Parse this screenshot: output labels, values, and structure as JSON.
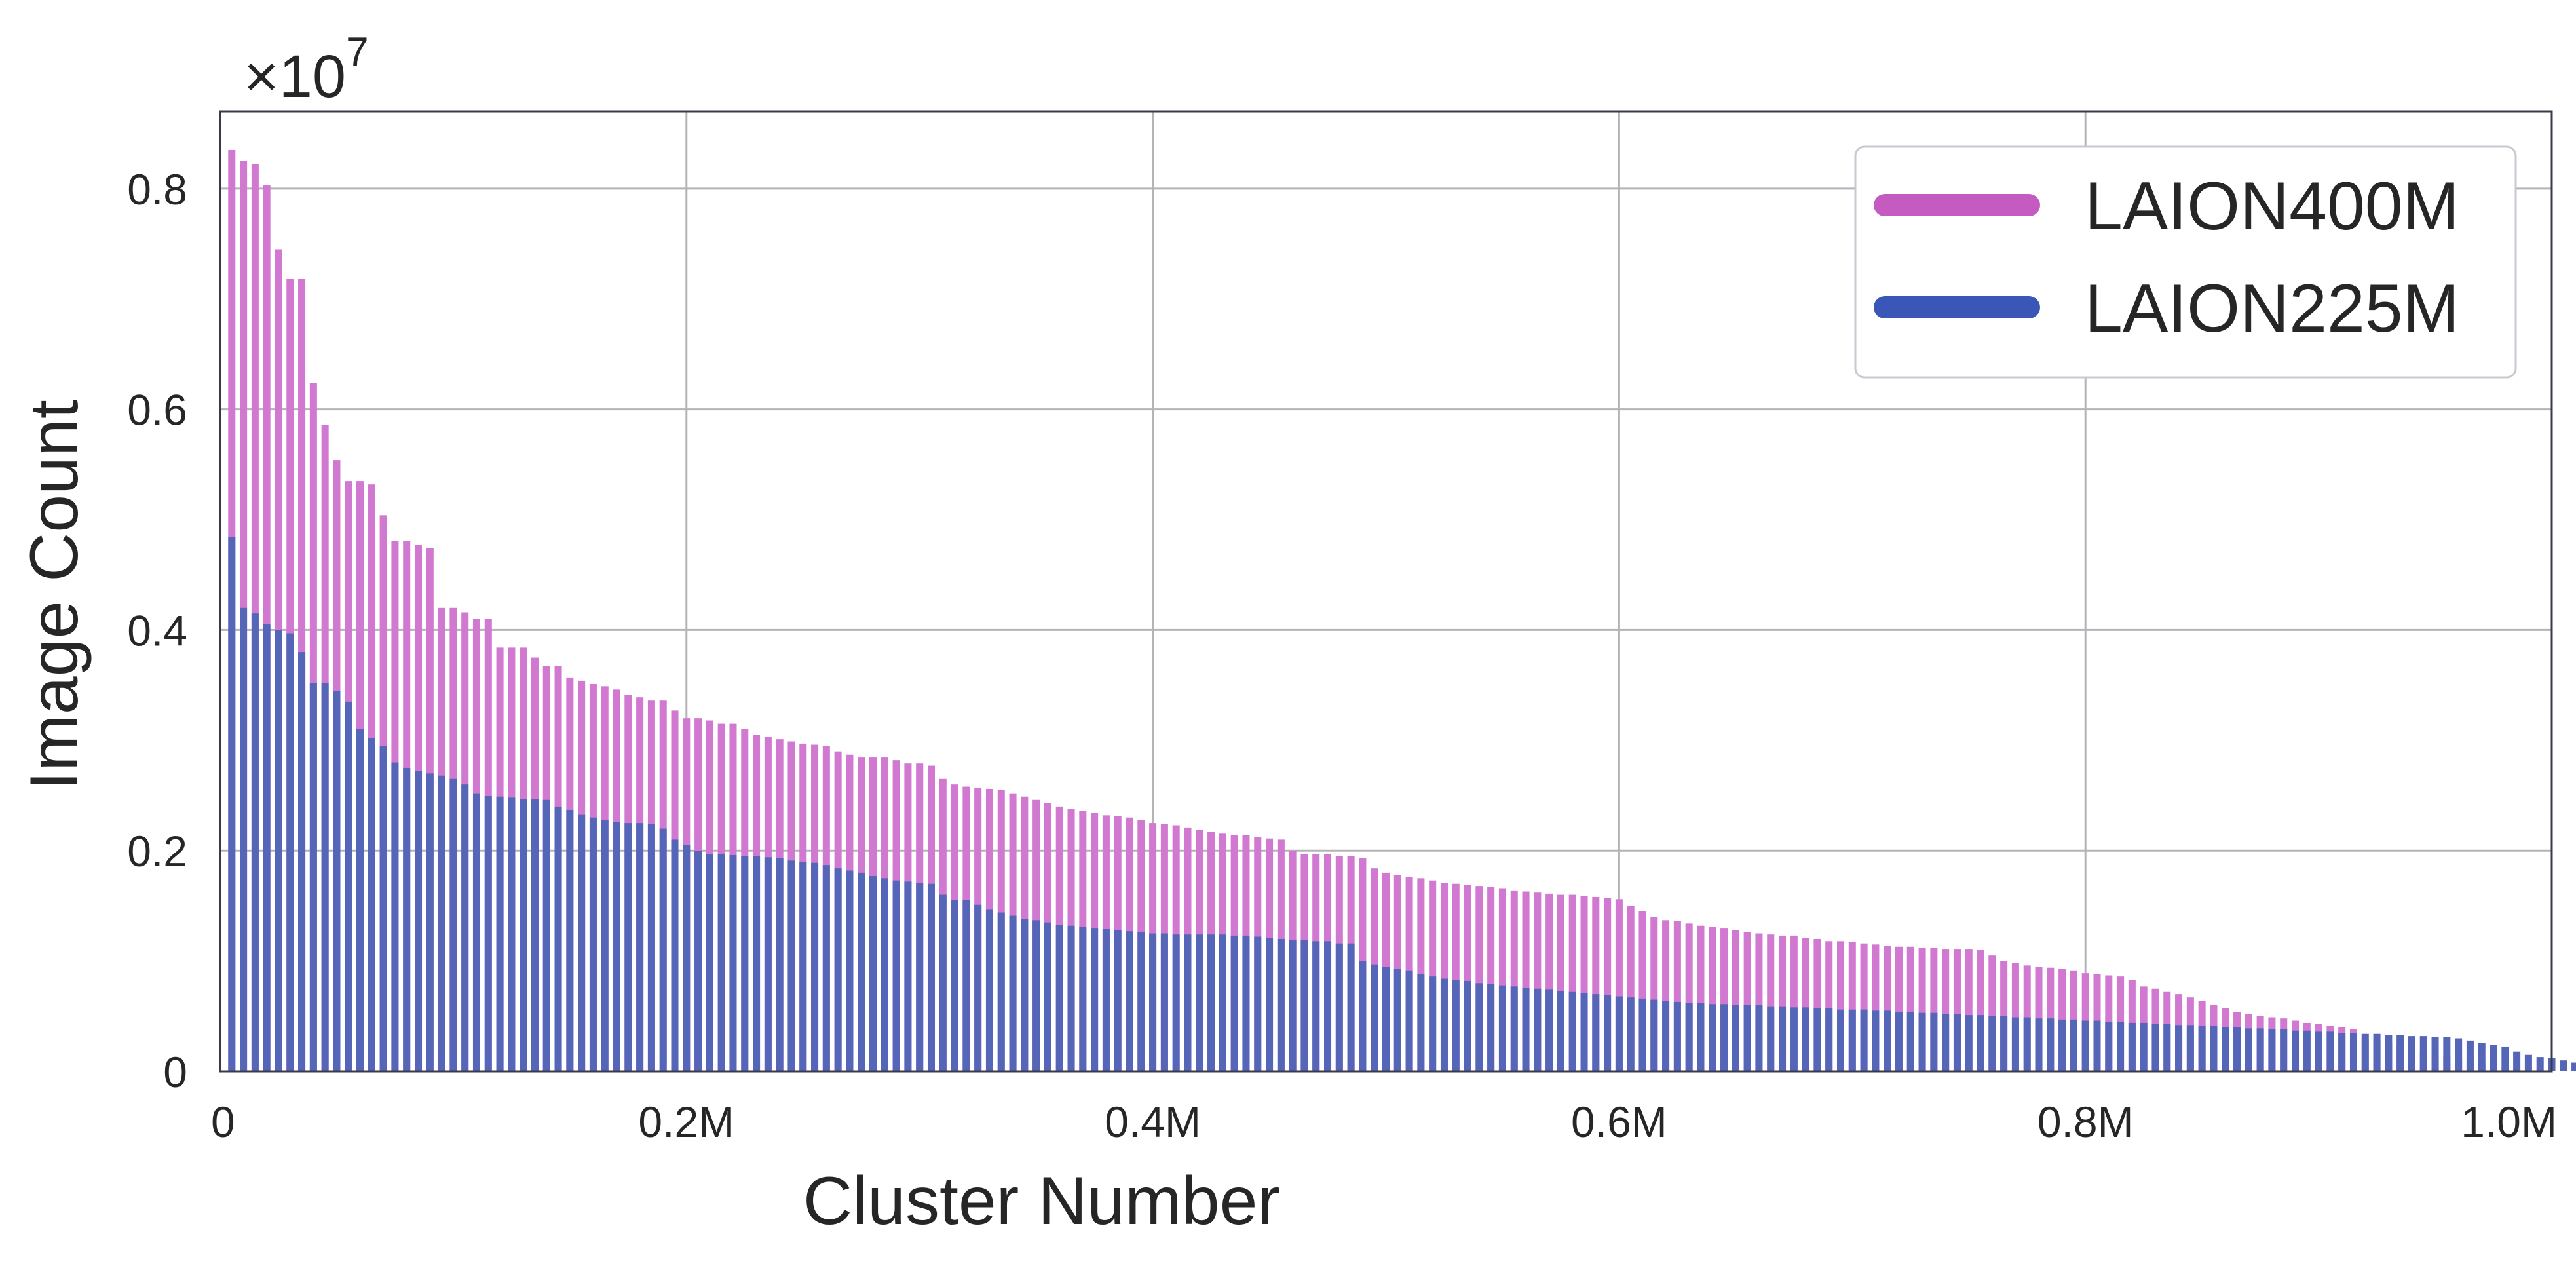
{
  "chart_data": {
    "type": "bar",
    "title": "",
    "xlabel": "Cluster Number",
    "ylabel": "Image Count",
    "y_scale_prefix": "×10",
    "y_scale_exponent": "7",
    "xlim": [
      0,
      1000000
    ],
    "ylim": [
      0,
      0.87
    ],
    "x_ticks": [
      {
        "value": 0,
        "label": "0"
      },
      {
        "value": 200000,
        "label": "0.2M"
      },
      {
        "value": 400000,
        "label": "0.4M"
      },
      {
        "value": 600000,
        "label": "0.6M"
      },
      {
        "value": 800000,
        "label": "0.8M"
      },
      {
        "value": 1000000,
        "label": "1.0M"
      }
    ],
    "y_ticks": [
      {
        "value": 0,
        "label": "0"
      },
      {
        "value": 0.2,
        "label": "0.2"
      },
      {
        "value": 0.4,
        "label": "0.4"
      },
      {
        "value": 0.6,
        "label": "0.6"
      },
      {
        "value": 0.8,
        "label": "0.8"
      }
    ],
    "grid": true,
    "legend_position": "top-right",
    "bin_width": 5000,
    "bin_start": 5000,
    "series": [
      {
        "name": "LAION400M",
        "color": "#d179d1",
        "legend_color": "#c55bc0",
        "values": [
          0.835,
          0.825,
          0.822,
          0.803,
          0.745,
          0.718,
          0.718,
          0.624,
          0.586,
          0.554,
          0.535,
          0.535,
          0.532,
          0.504,
          0.481,
          0.481,
          0.477,
          0.474,
          0.42,
          0.42,
          0.416,
          0.41,
          0.41,
          0.384,
          0.384,
          0.384,
          0.375,
          0.367,
          0.367,
          0.357,
          0.354,
          0.351,
          0.349,
          0.346,
          0.341,
          0.339,
          0.336,
          0.336,
          0.327,
          0.32,
          0.32,
          0.318,
          0.315,
          0.315,
          0.31,
          0.305,
          0.303,
          0.301,
          0.299,
          0.297,
          0.296,
          0.295,
          0.29,
          0.287,
          0.285,
          0.285,
          0.285,
          0.282,
          0.279,
          0.279,
          0.277,
          0.265,
          0.26,
          0.258,
          0.257,
          0.256,
          0.255,
          0.252,
          0.249,
          0.246,
          0.243,
          0.24,
          0.238,
          0.236,
          0.234,
          0.232,
          0.231,
          0.23,
          0.228,
          0.225,
          0.224,
          0.223,
          0.221,
          0.219,
          0.217,
          0.216,
          0.214,
          0.214,
          0.212,
          0.211,
          0.21,
          0.2,
          0.197,
          0.197,
          0.197,
          0.195,
          0.195,
          0.193,
          0.184,
          0.18,
          0.178,
          0.176,
          0.175,
          0.173,
          0.171,
          0.17,
          0.169,
          0.168,
          0.167,
          0.166,
          0.164,
          0.163,
          0.162,
          0.161,
          0.16,
          0.16,
          0.159,
          0.158,
          0.157,
          0.156,
          0.15,
          0.145,
          0.14,
          0.137,
          0.136,
          0.134,
          0.132,
          0.131,
          0.13,
          0.128,
          0.126,
          0.125,
          0.124,
          0.123,
          0.123,
          0.121,
          0.12,
          0.118,
          0.118,
          0.117,
          0.116,
          0.115,
          0.114,
          0.113,
          0.113,
          0.112,
          0.112,
          0.111,
          0.111,
          0.111,
          0.11,
          0.105,
          0.1,
          0.098,
          0.096,
          0.095,
          0.094,
          0.093,
          0.091,
          0.089,
          0.088,
          0.087,
          0.086,
          0.083,
          0.077,
          0.075,
          0.072,
          0.07,
          0.067,
          0.064,
          0.06,
          0.057,
          0.054,
          0.052,
          0.05,
          0.049,
          0.048,
          0.046,
          0.044,
          0.043,
          0.041,
          0.04,
          0.038,
          0.03,
          0.028,
          0.026,
          0.024,
          0.022,
          0.018,
          0.015,
          0.013,
          0.012,
          0.01,
          0.008,
          0.005,
          0.003,
          0.002,
          0.001
        ]
      },
      {
        "name": "LAION225M",
        "color": "#5566b8",
        "legend_color": "#3a57b8",
        "values": [
          0.484,
          0.42,
          0.415,
          0.405,
          0.4,
          0.397,
          0.38,
          0.352,
          0.352,
          0.345,
          0.335,
          0.31,
          0.302,
          0.295,
          0.28,
          0.275,
          0.272,
          0.27,
          0.268,
          0.265,
          0.26,
          0.252,
          0.25,
          0.249,
          0.248,
          0.247,
          0.247,
          0.246,
          0.24,
          0.237,
          0.233,
          0.23,
          0.228,
          0.226,
          0.225,
          0.225,
          0.224,
          0.22,
          0.21,
          0.205,
          0.2,
          0.197,
          0.197,
          0.196,
          0.195,
          0.195,
          0.194,
          0.193,
          0.191,
          0.19,
          0.189,
          0.187,
          0.184,
          0.182,
          0.18,
          0.177,
          0.175,
          0.173,
          0.172,
          0.171,
          0.17,
          0.16,
          0.155,
          0.155,
          0.151,
          0.147,
          0.144,
          0.141,
          0.138,
          0.137,
          0.135,
          0.133,
          0.132,
          0.131,
          0.13,
          0.129,
          0.128,
          0.127,
          0.126,
          0.125,
          0.125,
          0.124,
          0.124,
          0.124,
          0.124,
          0.124,
          0.123,
          0.123,
          0.122,
          0.121,
          0.12,
          0.119,
          0.119,
          0.118,
          0.118,
          0.116,
          0.116,
          0.1,
          0.097,
          0.095,
          0.093,
          0.091,
          0.088,
          0.086,
          0.084,
          0.083,
          0.082,
          0.08,
          0.079,
          0.078,
          0.077,
          0.076,
          0.075,
          0.074,
          0.073,
          0.072,
          0.071,
          0.07,
          0.069,
          0.068,
          0.067,
          0.066,
          0.065,
          0.064,
          0.063,
          0.062,
          0.062,
          0.061,
          0.061,
          0.06,
          0.06,
          0.06,
          0.059,
          0.059,
          0.058,
          0.058,
          0.057,
          0.057,
          0.056,
          0.056,
          0.056,
          0.055,
          0.055,
          0.054,
          0.054,
          0.053,
          0.053,
          0.052,
          0.052,
          0.051,
          0.051,
          0.05,
          0.05,
          0.049,
          0.049,
          0.048,
          0.048,
          0.047,
          0.047,
          0.046,
          0.046,
          0.045,
          0.045,
          0.044,
          0.044,
          0.043,
          0.043,
          0.042,
          0.042,
          0.041,
          0.041,
          0.04,
          0.04,
          0.039,
          0.039,
          0.038,
          0.038,
          0.037,
          0.037,
          0.036,
          0.036,
          0.035,
          0.035,
          0.034,
          0.034,
          0.033,
          0.033,
          0.032,
          0.032,
          0.031,
          0.031,
          0.03,
          0.028,
          0.026,
          0.024,
          0.022,
          0.018,
          0.015,
          0.013,
          0.012,
          0.01,
          0.008,
          0.005,
          0.003,
          0.002,
          0.001
        ]
      }
    ]
  }
}
